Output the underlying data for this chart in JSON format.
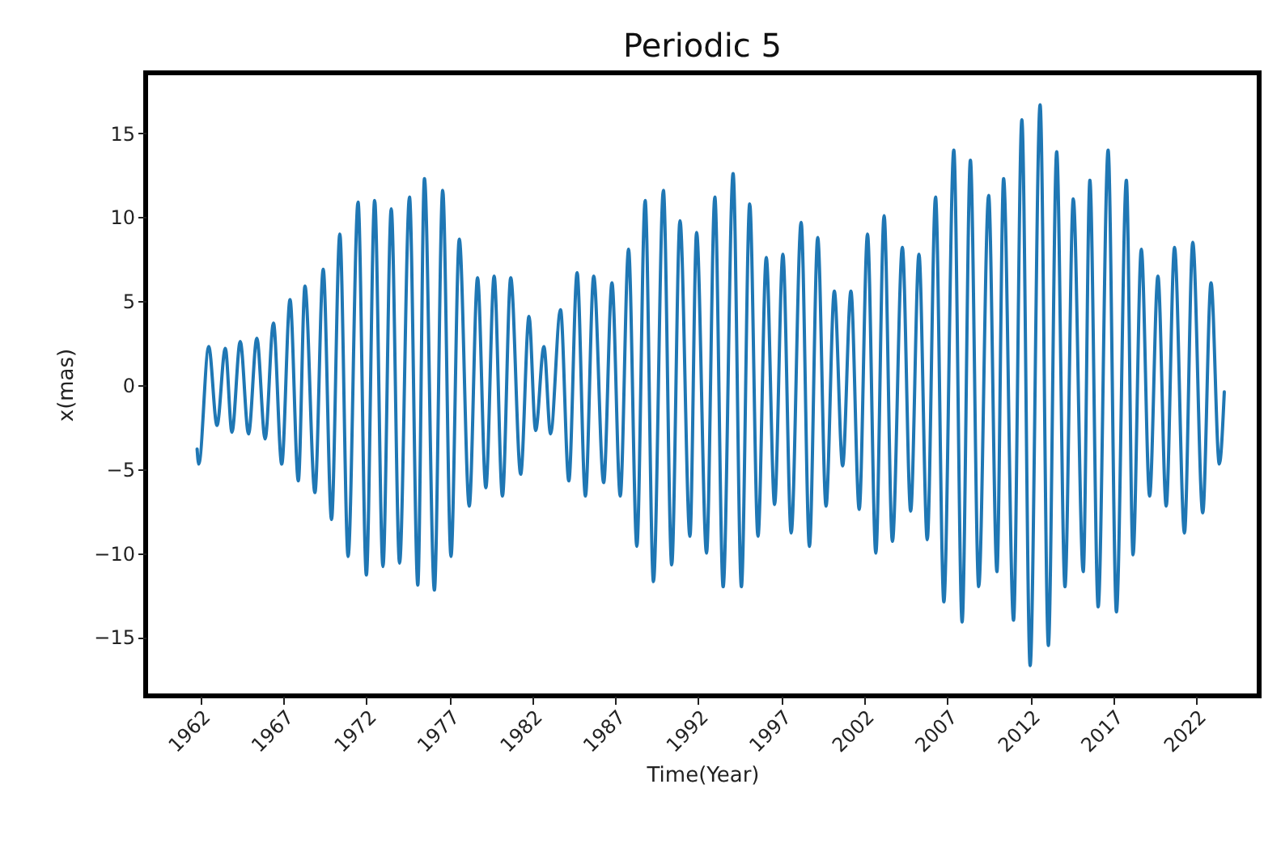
{
  "chart_data": {
    "type": "line",
    "title": "Periodic 5",
    "xlabel": "Time(Year)",
    "ylabel": "x(mas)",
    "xlim": [
      1958.7,
      2025.8
    ],
    "ylim": [
      -18.5,
      18.6
    ],
    "xticks": [
      1962,
      1967,
      1972,
      1977,
      1982,
      1987,
      1992,
      1997,
      2002,
      2007,
      2012,
      2017,
      2022
    ],
    "yticks": [
      -15,
      -10,
      -5,
      0,
      5,
      10,
      15
    ],
    "line_style": "solid",
    "series": [
      {
        "color": "#1f77b4",
        "x": [
          1961.8,
          1961.9,
          1962.5,
          1963.0,
          1963.5,
          1963.9,
          1964.4,
          1964.9,
          1965.4,
          1965.9,
          1966.4,
          1966.9,
          1967.4,
          1967.9,
          1968.3,
          1968.9,
          1969.4,
          1969.9,
          1970.4,
          1970.9,
          1971.5,
          1972.0,
          1972.5,
          1973.0,
          1973.5,
          1974.0,
          1974.6,
          1975.1,
          1975.5,
          1976.1,
          1976.6,
          1977.1,
          1977.6,
          1978.2,
          1978.7,
          1979.2,
          1979.7,
          1980.2,
          1980.7,
          1981.3,
          1981.8,
          1982.2,
          1982.7,
          1983.1,
          1983.7,
          1984.2,
          1984.7,
          1985.2,
          1985.7,
          1986.3,
          1986.8,
          1987.3,
          1987.8,
          1988.3,
          1988.8,
          1989.3,
          1989.9,
          1990.4,
          1990.9,
          1991.5,
          1991.9,
          1992.5,
          1993.0,
          1993.5,
          1994.1,
          1994.6,
          1995.1,
          1995.6,
          1996.1,
          1996.6,
          1997.1,
          1997.6,
          1998.2,
          1998.7,
          1999.2,
          1999.7,
          2000.2,
          2000.7,
          2001.2,
          2001.7,
          2002.2,
          2002.7,
          2003.2,
          2003.7,
          2004.3,
          2004.8,
          2005.3,
          2005.8,
          2006.3,
          2006.8,
          2007.4,
          2007.9,
          2008.4,
          2008.9,
          2009.5,
          2010.0,
          2010.4,
          2011.0,
          2011.5,
          2012.0,
          2012.6,
          2013.1,
          2013.6,
          2014.1,
          2014.6,
          2015.2,
          2015.6,
          2016.1,
          2016.7,
          2017.2,
          2017.8,
          2018.2,
          2018.7,
          2019.2,
          2019.7,
          2020.2,
          2020.7,
          2021.3,
          2021.8,
          2022.4,
          2022.9,
          2023.4,
          2023.7
        ],
        "values": [
          -3.8,
          -4.7,
          2.3,
          -2.4,
          2.2,
          -2.8,
          2.6,
          -2.9,
          2.8,
          -3.2,
          3.7,
          -4.7,
          5.1,
          -5.7,
          5.9,
          -6.4,
          6.9,
          -8.0,
          9.0,
          -10.2,
          10.9,
          -11.3,
          11.0,
          -10.8,
          10.5,
          -10.6,
          11.2,
          -11.9,
          12.3,
          -12.2,
          11.6,
          -10.2,
          8.7,
          -7.2,
          6.4,
          -6.1,
          6.5,
          -6.6,
          6.4,
          -5.3,
          4.1,
          -2.7,
          2.3,
          -2.9,
          4.5,
          -5.7,
          6.7,
          -6.6,
          6.5,
          -5.8,
          6.1,
          -6.6,
          8.1,
          -9.6,
          11.0,
          -11.7,
          11.6,
          -10.7,
          9.8,
          -9.0,
          9.1,
          -10.0,
          11.2,
          -12.0,
          12.6,
          -12.0,
          10.8,
          -9.0,
          7.6,
          -7.1,
          7.8,
          -8.8,
          9.7,
          -9.6,
          8.8,
          -7.2,
          5.6,
          -4.8,
          5.6,
          -7.4,
          9.0,
          -10.0,
          10.1,
          -9.3,
          8.2,
          -7.5,
          7.8,
          -9.2,
          11.2,
          -12.9,
          14.0,
          -14.1,
          13.4,
          -12.0,
          11.3,
          -11.1,
          12.3,
          -14.0,
          15.8,
          -16.7,
          16.7,
          -15.5,
          13.9,
          -12.0,
          11.1,
          -11.1,
          12.2,
          -13.2,
          14.0,
          -13.5,
          12.2,
          -10.1,
          8.1,
          -6.6,
          6.5,
          -7.2,
          8.2,
          -8.8,
          8.5,
          -7.6,
          6.1,
          -4.7,
          -0.4
        ]
      }
    ]
  }
}
